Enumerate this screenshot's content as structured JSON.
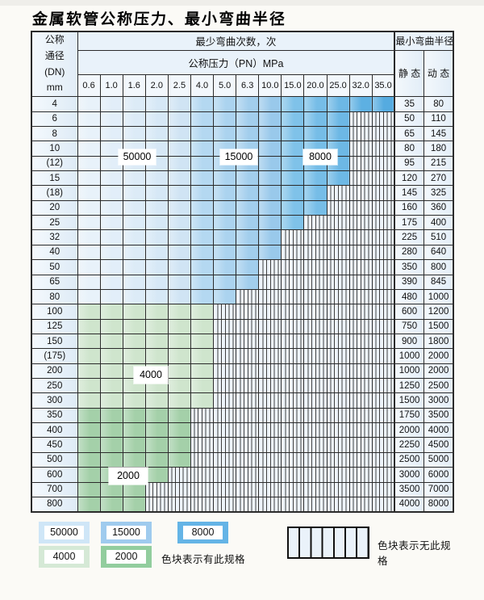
{
  "page": {
    "title": "金属软管公称压力、最小弯曲半径"
  },
  "table": {
    "corner": [
      "公称",
      "通径",
      "(DN)",
      "mm"
    ],
    "bend_cycles_header": "最少弯曲次数，次",
    "pressure_header": "公称压力（PN）MPa",
    "pressure_columns": [
      "0.6",
      "1.0",
      "1.6",
      "2.0",
      "2.5",
      "4.0",
      "5.0",
      "6.3",
      "10.0",
      "15.0",
      "20.0",
      "25.0",
      "32.0",
      "35.0"
    ],
    "radius_header": "最小弯曲半径",
    "static_header": "静 态",
    "dynamic_header": "动 态",
    "cycle_labels": [
      {
        "text": "50000"
      },
      {
        "text": "15000"
      },
      {
        "text": "8000"
      },
      {
        "text": "4000"
      },
      {
        "text": "2000"
      }
    ],
    "rows": [
      {
        "dn": "4",
        "region": "blue",
        "colored_cols": 14,
        "static": "35",
        "dynamic": "80"
      },
      {
        "dn": "6",
        "region": "blue",
        "colored_cols": 12,
        "static": "50",
        "dynamic": "110"
      },
      {
        "dn": "8",
        "region": "blue",
        "colored_cols": 12,
        "static": "65",
        "dynamic": "145"
      },
      {
        "dn": "10",
        "region": "blue",
        "colored_cols": 12,
        "static": "80",
        "dynamic": "180"
      },
      {
        "dn": "(12)",
        "region": "blue",
        "colored_cols": 12,
        "static": "95",
        "dynamic": "215"
      },
      {
        "dn": "15",
        "region": "blue",
        "colored_cols": 12,
        "static": "120",
        "dynamic": "270"
      },
      {
        "dn": "(18)",
        "region": "blue",
        "colored_cols": 11,
        "static": "145",
        "dynamic": "325"
      },
      {
        "dn": "20",
        "region": "blue",
        "colored_cols": 11,
        "static": "160",
        "dynamic": "360"
      },
      {
        "dn": "25",
        "region": "blue",
        "colored_cols": 10,
        "static": "175",
        "dynamic": "400"
      },
      {
        "dn": "32",
        "region": "blue",
        "colored_cols": 9,
        "static": "225",
        "dynamic": "510"
      },
      {
        "dn": "40",
        "region": "blue",
        "colored_cols": 9,
        "static": "280",
        "dynamic": "640"
      },
      {
        "dn": "50",
        "region": "blue",
        "colored_cols": 8,
        "static": "350",
        "dynamic": "800"
      },
      {
        "dn": "65",
        "region": "blue",
        "colored_cols": 8,
        "static": "390",
        "dynamic": "845"
      },
      {
        "dn": "80",
        "region": "blue",
        "colored_cols": 7,
        "static": "480",
        "dynamic": "1000"
      },
      {
        "dn": "100",
        "region": "green-4000",
        "colored_cols": 6,
        "static": "600",
        "dynamic": "1200"
      },
      {
        "dn": "125",
        "region": "green-4000",
        "colored_cols": 6,
        "static": "750",
        "dynamic": "1500"
      },
      {
        "dn": "150",
        "region": "green-4000",
        "colored_cols": 6,
        "static": "900",
        "dynamic": "1800"
      },
      {
        "dn": "(175)",
        "region": "green-4000",
        "colored_cols": 6,
        "static": "1000",
        "dynamic": "2000"
      },
      {
        "dn": "200",
        "region": "green-4000",
        "colored_cols": 6,
        "static": "1000",
        "dynamic": "2000"
      },
      {
        "dn": "250",
        "region": "green-4000",
        "colored_cols": 6,
        "static": "1250",
        "dynamic": "2500"
      },
      {
        "dn": "300",
        "region": "green-4000",
        "colored_cols": 6,
        "static": "1500",
        "dynamic": "3000"
      },
      {
        "dn": "350",
        "region": "green-2000",
        "colored_cols": 5,
        "static": "1750",
        "dynamic": "3500"
      },
      {
        "dn": "400",
        "region": "green-2000",
        "colored_cols": 5,
        "static": "2000",
        "dynamic": "4000"
      },
      {
        "dn": "450",
        "region": "green-2000",
        "colored_cols": 5,
        "static": "2250",
        "dynamic": "4500"
      },
      {
        "dn": "500",
        "region": "green-2000",
        "colored_cols": 5,
        "static": "2500",
        "dynamic": "5000"
      },
      {
        "dn": "600",
        "region": "green-2000",
        "colored_cols": 4,
        "static": "3000",
        "dynamic": "6000"
      },
      {
        "dn": "700",
        "region": "green-2000",
        "colored_cols": 3,
        "static": "3500",
        "dynamic": "7000"
      },
      {
        "dn": "800",
        "region": "green-2000",
        "colored_cols": 3,
        "static": "4000",
        "dynamic": "8000"
      }
    ]
  },
  "legend": {
    "items": [
      {
        "label": "50000",
        "color": "#cfe6f7"
      },
      {
        "label": "15000",
        "color": "#9fcbee"
      },
      {
        "label": "8000",
        "color": "#64b4e6"
      },
      {
        "label": "4000",
        "color": "#d5e9d6"
      },
      {
        "label": "2000",
        "color": "#92cd9e"
      }
    ],
    "has_spec_note": "色块表示有此规格",
    "no_spec_note": "色块表示无此规格"
  },
  "colors": {
    "blue_columns": [
      "#e8f2fa",
      "#e2eef9",
      "#dcebf7",
      "#d6e8f6",
      "#d0e4f4",
      "#b4d8f1",
      "#abd3ef",
      "#a2ceed",
      "#99c9eb",
      "#7fc2e9",
      "#76bde7",
      "#6db8e5",
      "#5db0e2",
      "#55abe0"
    ],
    "green_4000": "#cfe5cd",
    "green_2000": "#a4d0a9",
    "stripe_bg": "#eef4fb",
    "grid": "#2b2b2b"
  }
}
